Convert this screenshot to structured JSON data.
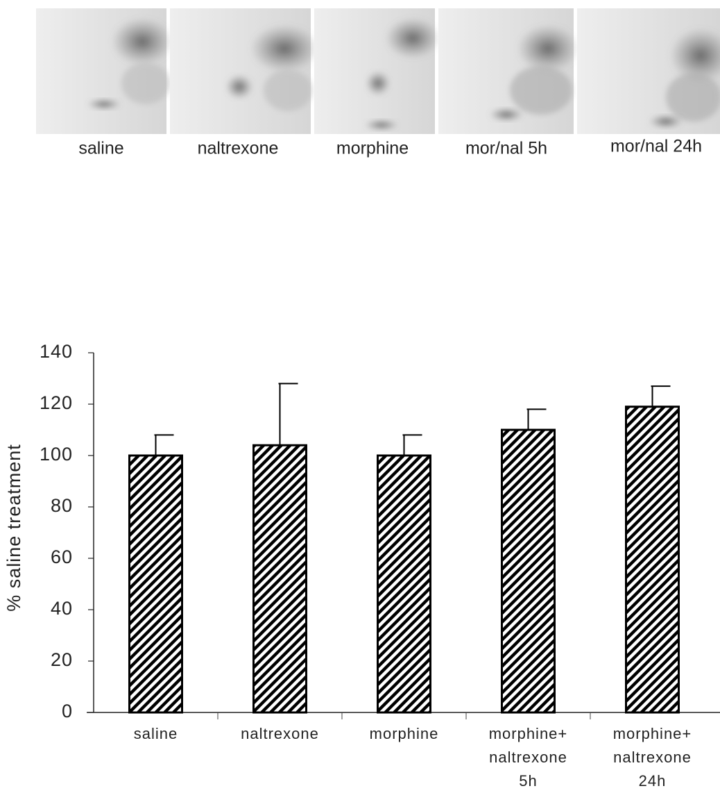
{
  "panels": {
    "labels": [
      "saline",
      "naltrexone",
      "morphine",
      "mor/nal 5h",
      "mor/nal 24h"
    ]
  },
  "chart_data": {
    "type": "bar",
    "y_label": "% saline treatment",
    "categories": [
      [
        "saline"
      ],
      [
        "naltrexone"
      ],
      [
        "morphine"
      ],
      [
        "morphine+",
        "naltrexone",
        "5h"
      ],
      [
        "morphine+",
        "naltrexone",
        "24h"
      ]
    ],
    "values": [
      100,
      104,
      100,
      110,
      119
    ],
    "errors": [
      8,
      24,
      8,
      8,
      8
    ],
    "color": "#000000",
    "ylim": [
      0,
      140
    ],
    "yticks": [
      0,
      20,
      40,
      60,
      80,
      100,
      120,
      140
    ],
    "grid": false
  }
}
